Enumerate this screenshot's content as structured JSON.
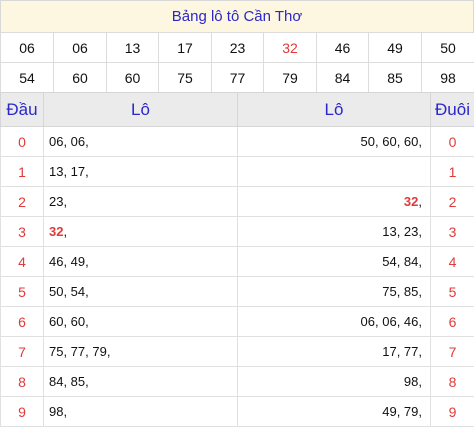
{
  "title": "Bảng lô tô Cần Thơ",
  "numbers": [
    [
      "06",
      "06",
      "13",
      "17",
      "23",
      "32",
      "46",
      "49",
      "50"
    ],
    [
      "54",
      "60",
      "60",
      "75",
      "77",
      "79",
      "84",
      "85",
      "98"
    ]
  ],
  "highlight_number": "32",
  "colors": {
    "title_text": "#2b27c9",
    "red": "#e03a3a",
    "header_bg": "#ebebeb",
    "title_bg": "#fdf7e2"
  },
  "table": {
    "headers": {
      "dau": "Đầu",
      "lo_left": "Lô",
      "lo_right": "Lô",
      "duoi": "Đuôi"
    },
    "rows": [
      {
        "dau": "0",
        "lo_left": "06, 06,",
        "lo_right": "50, 60, 60,",
        "duoi": "0"
      },
      {
        "dau": "1",
        "lo_left": "13, 17,",
        "lo_right": "",
        "duoi": "1"
      },
      {
        "dau": "2",
        "lo_left": "23,",
        "lo_right": "32,",
        "duoi": "2"
      },
      {
        "dau": "3",
        "lo_left": "32,",
        "lo_right": "13, 23,",
        "duoi": "3"
      },
      {
        "dau": "4",
        "lo_left": "46, 49,",
        "lo_right": "54, 84,",
        "duoi": "4"
      },
      {
        "dau": "5",
        "lo_left": "50, 54,",
        "lo_right": "75, 85,",
        "duoi": "5"
      },
      {
        "dau": "6",
        "lo_left": "60, 60,",
        "lo_right": "06, 06, 46,",
        "duoi": "6"
      },
      {
        "dau": "7",
        "lo_left": "75, 77, 79,",
        "lo_right": "17, 77,",
        "duoi": "7"
      },
      {
        "dau": "8",
        "lo_left": "84, 85,",
        "lo_right": "98,",
        "duoi": "8"
      },
      {
        "dau": "9",
        "lo_left": "98,",
        "lo_right": "49, 79,",
        "duoi": "9"
      }
    ]
  }
}
